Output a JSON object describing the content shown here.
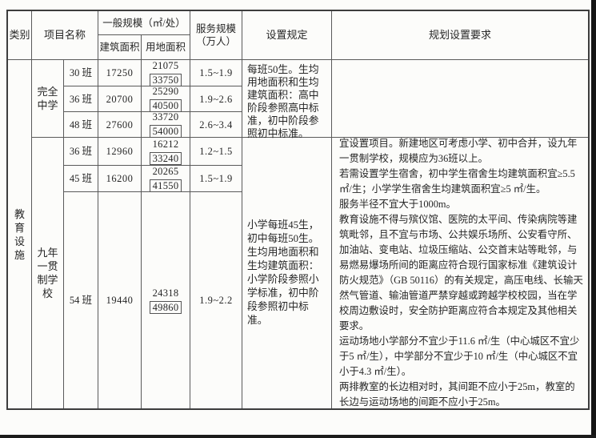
{
  "table": {
    "headers": {
      "category": "类别",
      "project_name": "项目名称",
      "general_scale": "一般规模（㎡/处）",
      "building_area": "建筑面积",
      "land_area": "用地面积",
      "service_scale": "服务规模（万人）",
      "setting_rule": "设置规定",
      "planning_requirements": "规划设置要求"
    },
    "category": "教育设施",
    "groups": [
      {
        "name": "完全中学",
        "rows": [
          {
            "classes": "30 班",
            "building_area": "17250",
            "land_top": "21075",
            "land_boxed": "33750",
            "service": "1.5~1.9"
          },
          {
            "classes": "36 班",
            "building_area": "20700",
            "land_top": "25290",
            "land_boxed": "40500",
            "service": "1.9~2.6"
          },
          {
            "classes": "48 班",
            "building_area": "27600",
            "land_top": "33720",
            "land_boxed": "54000",
            "service": "2.6~3.4"
          }
        ],
        "setting_rule": "每班50生。生均用地面积和生均建筑面积：高中阶段参照高中标准，初中阶段参照初中标准。"
      },
      {
        "name": "九年一贯制学校",
        "rows": [
          {
            "classes": "36 班",
            "building_area": "12960",
            "land_top": "16212",
            "land_boxed": "33240",
            "service": "1.2~1.5"
          },
          {
            "classes": "45 班",
            "building_area": "16200",
            "land_top": "20265",
            "land_boxed": "41550",
            "service": "1.5~1.9"
          },
          {
            "classes": "54 班",
            "building_area": "19440",
            "land_top": "24318",
            "land_boxed": "49860",
            "service": "1.9~2.2"
          }
        ],
        "setting_rule": "小学每班45生，初中每班50生。生均用地面积和生均建筑面积：小学阶段参照小学标准，初中阶段参照初中标准。",
        "planning": [
          "宜设置项目。新建地区可考虑小学、初中合并，设九年一贯制学校，规模应为36班以上。",
          "若需设置学生宿舍，初中学生宿舍生均建筑面积宜≥5.5 ㎡/生；小学学生宿舍生均建筑面积宜≥5 ㎡/生。",
          "服务半径不宜大于1000m。",
          "教育设施不得与殡仪馆、医院的太平间、传染病院等建筑毗邻，且不宜与市场、公共娱乐场所、公安看守所、加油站、变电站、垃圾压缩站、公交首末站等毗邻，与易燃易爆场所间的距离应符合现行国家标准《建筑设计防火规范》（GB 50116）的有关规定，高压电线、长输天然气管道、输油管道严禁穿越或跨越学校校园，当在学校周边敷设时，安全防护距离应符合本规定及其他相关要求。",
          "运动场地小学部分不宜少于11.6 ㎡/生（中心城区不宜少于5 ㎡/生），中学部分不宜少于10 ㎡/生（中心城区不宜小于4.3 ㎡/生）。",
          "两排教室的长边相对时，其间距不应小于25m，教室的长边与运动场地的间距不应小于25m。"
        ]
      }
    ]
  }
}
